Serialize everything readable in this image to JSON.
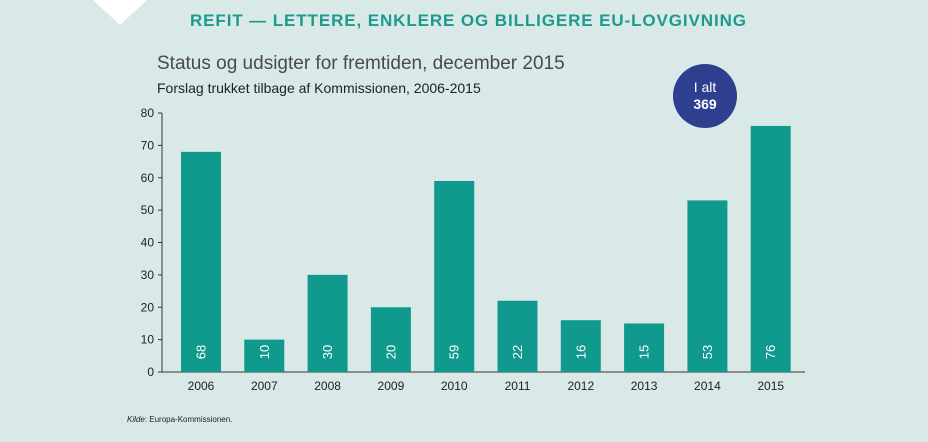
{
  "header": {
    "title": "REFIT — LETTERE, ENKLERE OG BILLIGERE EU-LOVGIVNING"
  },
  "badge": {
    "label": "I alt",
    "value": "369"
  },
  "source": {
    "label": "Kilde",
    "text": ": Europa-Kommissionen."
  },
  "colors": {
    "background": "#d9e9e8",
    "bar": "#0f9a8d",
    "header": "#1d9a8e",
    "badge": "#2e3f8f",
    "corner": "#ffffff"
  },
  "chart_data": {
    "type": "bar",
    "title": "Status og udsigter for fremtiden, december 2015",
    "subtitle": "Forslag trukket tilbage af Kommissionen, 2006-2015",
    "xlabel": "",
    "ylabel": "",
    "categories": [
      "2006",
      "2007",
      "2008",
      "2009",
      "2010",
      "2011",
      "2012",
      "2013",
      "2014",
      "2015"
    ],
    "values": [
      68,
      10,
      30,
      20,
      59,
      22,
      16,
      15,
      53,
      76
    ],
    "yticks": [
      0,
      10,
      20,
      30,
      40,
      50,
      60,
      70,
      80
    ],
    "ylim": [
      0,
      80
    ],
    "grid": false,
    "data_labels": true
  }
}
